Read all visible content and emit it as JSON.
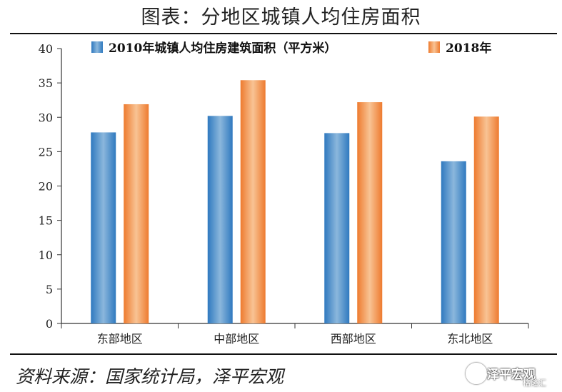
{
  "header": {
    "title": "图表：分地区城镇人均住房面积"
  },
  "footer": {
    "source": "资料来源：国家统计局，泽平宏观"
  },
  "watermark": {
    "name": "泽平宏观",
    "sub": "格隆汇"
  },
  "colors": {
    "series1": "#4a8fc8",
    "series2": "#f29a5a",
    "axis": "#333333"
  },
  "chart_data": {
    "type": "bar",
    "categories": [
      "东部地区",
      "中部地区",
      "西部地区",
      "东北地区"
    ],
    "series": [
      {
        "name": "2010年城镇人均住房建筑面积（平方米）",
        "values": [
          27.8,
          30.2,
          27.7,
          23.6
        ]
      },
      {
        "name": "2018年",
        "values": [
          31.9,
          35.4,
          32.2,
          30.1
        ]
      }
    ],
    "yticks": [
      0,
      5,
      10,
      15,
      20,
      25,
      30,
      35,
      40
    ],
    "ylim": [
      0,
      40
    ],
    "grid": false,
    "legend_position": "top"
  }
}
